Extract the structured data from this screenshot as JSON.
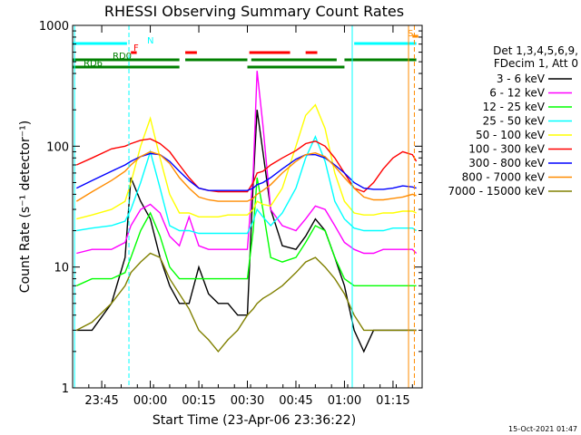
{
  "chart_data": {
    "type": "line",
    "title": "RHESSI Observing Summary Count Rates",
    "xlabel": "Start Time (23-Apr-06 23:36:22)",
    "ylabel": "Count Rate (s⁻¹ detector⁻¹)",
    "yscale": "log",
    "ylim": [
      1,
      1000
    ],
    "xlim": [
      23.6,
      25.4
    ],
    "x_ticks": [
      23.75,
      24.0,
      24.25,
      24.5,
      24.75,
      25.0,
      25.25
    ],
    "x_tick_labels": [
      "23:45",
      "00:00",
      "00:15",
      "00:30",
      "00:45",
      "01:00",
      "01:15"
    ],
    "y_ticks": [
      1,
      10,
      100,
      1000
    ],
    "y_tick_labels": [
      "1",
      "10",
      "100",
      "1000"
    ],
    "legend": {
      "header": [
        "Det 1,3,4,5,6,9,",
        "FDecim 1, Att 0"
      ],
      "position": "right"
    },
    "timestamp": "15-Oct-2021 01:47",
    "flags": [
      {
        "label": "N",
        "color": "#00ffff",
        "segments": [
          [
            23.6,
            23.88
          ],
          [
            25.05,
            25.37
          ]
        ],
        "row": 1
      },
      {
        "label": "F",
        "color": "#ff0000",
        "segments": [
          [
            23.9,
            23.93
          ],
          [
            24.18,
            24.24
          ],
          [
            24.51,
            24.72
          ],
          [
            24.8,
            24.86
          ]
        ],
        "row": 2
      },
      {
        "label": "S",
        "color": "#ff8c00",
        "segments": [
          [
            25.35,
            25.38
          ]
        ],
        "row": 0
      },
      {
        "label": "RD0",
        "color": "#008000",
        "segments": [
          [
            23.6,
            24.15
          ],
          [
            24.18,
            24.5
          ],
          [
            24.52,
            24.96
          ],
          [
            25.0,
            25.37
          ]
        ],
        "row": 3
      },
      {
        "label": "RD6",
        "color": "#008000",
        "segments": [
          [
            23.6,
            24.15
          ],
          [
            24.5,
            25.0
          ]
        ],
        "row": 4
      }
    ],
    "vlines": [
      {
        "x": 23.61,
        "color": "#00ffff",
        "style": "solid"
      },
      {
        "x": 23.89,
        "color": "#00ffff",
        "style": "dashed"
      },
      {
        "x": 25.04,
        "color": "#00ffff",
        "style": "solid"
      },
      {
        "x": 25.33,
        "color": "#ff8c00",
        "style": "solid"
      },
      {
        "x": 25.36,
        "color": "#ff8c00",
        "style": "dashed"
      }
    ],
    "series": [
      {
        "name": "3 - 6 keV",
        "color": "#000000",
        "x": [
          23.62,
          23.7,
          23.8,
          23.87,
          23.9,
          23.95,
          24.0,
          24.05,
          24.1,
          24.15,
          24.2,
          24.25,
          24.3,
          24.35,
          24.4,
          24.45,
          24.5,
          24.53,
          24.55,
          24.58,
          24.62,
          24.68,
          24.75,
          24.8,
          24.85,
          24.9,
          24.95,
          25.0,
          25.05,
          25.1,
          25.15,
          25.2,
          25.25,
          25.3,
          25.35,
          25.37
        ],
        "y": [
          3,
          3,
          5,
          12,
          55,
          35,
          25,
          12,
          7,
          5,
          5,
          10,
          6,
          5,
          5,
          4,
          4,
          50,
          200,
          90,
          30,
          15,
          14,
          18,
          25,
          20,
          12,
          7,
          3,
          2,
          3,
          3,
          3,
          3,
          3,
          3
        ]
      },
      {
        "name": "6 - 12 keV",
        "color": "#ff00ff",
        "x": [
          23.62,
          23.7,
          23.8,
          23.87,
          23.9,
          23.95,
          24.0,
          24.05,
          24.1,
          24.15,
          24.2,
          24.25,
          24.3,
          24.35,
          24.4,
          24.45,
          24.5,
          24.53,
          24.55,
          24.58,
          24.62,
          24.68,
          24.75,
          24.8,
          24.85,
          24.9,
          24.95,
          25.0,
          25.05,
          25.1,
          25.15,
          25.2,
          25.25,
          25.3,
          25.35,
          25.37
        ],
        "y": [
          13,
          14,
          14,
          16,
          22,
          30,
          33,
          28,
          18,
          15,
          26,
          15,
          14,
          14,
          14,
          14,
          14,
          60,
          420,
          150,
          30,
          22,
          20,
          25,
          32,
          30,
          22,
          16,
          14,
          13,
          13,
          14,
          14,
          14,
          14,
          13
        ]
      },
      {
        "name": "12 - 25 keV",
        "color": "#00ff00",
        "x": [
          23.62,
          23.7,
          23.8,
          23.87,
          23.9,
          23.95,
          24.0,
          24.05,
          24.1,
          24.15,
          24.2,
          24.25,
          24.3,
          24.35,
          24.4,
          24.45,
          24.5,
          24.53,
          24.55,
          24.58,
          24.62,
          24.68,
          24.75,
          24.8,
          24.85,
          24.9,
          24.95,
          25.0,
          25.05,
          25.1,
          25.15,
          25.2,
          25.25,
          25.3,
          25.35,
          25.37
        ],
        "y": [
          7,
          8,
          8,
          9,
          12,
          20,
          28,
          18,
          10,
          8,
          8,
          8,
          8,
          8,
          8,
          8,
          8,
          20,
          55,
          30,
          12,
          11,
          12,
          16,
          22,
          20,
          12,
          8,
          7,
          7,
          7,
          7,
          7,
          7,
          7,
          7
        ]
      },
      {
        "name": "25 - 50 keV",
        "color": "#00ffff",
        "x": [
          23.62,
          23.7,
          23.8,
          23.87,
          23.9,
          23.95,
          24.0,
          24.05,
          24.1,
          24.15,
          24.2,
          24.25,
          24.3,
          24.35,
          24.4,
          24.45,
          24.5,
          24.53,
          24.55,
          24.58,
          24.62,
          24.68,
          24.75,
          24.8,
          24.85,
          24.9,
          24.95,
          25.0,
          25.05,
          25.1,
          25.15,
          25.2,
          25.25,
          25.3,
          25.35,
          25.37
        ],
        "y": [
          20,
          21,
          22,
          24,
          30,
          50,
          90,
          45,
          22,
          20,
          20,
          19,
          19,
          19,
          19,
          19,
          19,
          24,
          30,
          26,
          22,
          28,
          45,
          80,
          120,
          75,
          35,
          25,
          21,
          20,
          20,
          20,
          21,
          21,
          21,
          20
        ]
      },
      {
        "name": "50 - 100 keV",
        "color": "#ffff00",
        "x": [
          23.62,
          23.7,
          23.8,
          23.87,
          23.9,
          23.95,
          24.0,
          24.05,
          24.1,
          24.15,
          24.2,
          24.25,
          24.3,
          24.35,
          24.4,
          24.45,
          24.5,
          24.53,
          24.55,
          24.58,
          24.62,
          24.68,
          24.75,
          24.8,
          24.85,
          24.9,
          24.95,
          25.0,
          25.05,
          25.1,
          25.15,
          25.2,
          25.25,
          25.3,
          25.35,
          25.37
        ],
        "y": [
          25,
          27,
          30,
          35,
          50,
          100,
          170,
          80,
          40,
          28,
          28,
          26,
          26,
          26,
          27,
          27,
          27,
          30,
          35,
          33,
          32,
          45,
          100,
          180,
          220,
          140,
          60,
          35,
          28,
          27,
          27,
          28,
          28,
          29,
          29,
          28
        ]
      },
      {
        "name": "100 - 300 keV",
        "color": "#ff0000",
        "x": [
          23.62,
          23.7,
          23.8,
          23.87,
          23.9,
          23.95,
          24.0,
          24.05,
          24.1,
          24.15,
          24.2,
          24.25,
          24.3,
          24.35,
          24.4,
          24.45,
          24.5,
          24.53,
          24.55,
          24.58,
          24.62,
          24.68,
          24.75,
          24.8,
          24.85,
          24.9,
          24.95,
          25.0,
          25.05,
          25.1,
          25.15,
          25.2,
          25.25,
          25.3,
          25.35,
          25.37
        ],
        "y": [
          70,
          80,
          95,
          100,
          105,
          112,
          115,
          105,
          90,
          70,
          55,
          45,
          43,
          42,
          42,
          42,
          42,
          50,
          60,
          62,
          70,
          80,
          92,
          105,
          110,
          100,
          80,
          60,
          45,
          42,
          50,
          65,
          80,
          90,
          85,
          75
        ]
      },
      {
        "name": "300 - 800 keV",
        "color": "#0000ff",
        "x": [
          23.62,
          23.7,
          23.8,
          23.87,
          23.9,
          23.95,
          24.0,
          24.05,
          24.1,
          24.15,
          24.2,
          24.25,
          24.3,
          24.35,
          24.4,
          24.45,
          24.5,
          24.53,
          24.55,
          24.58,
          24.62,
          24.68,
          24.75,
          24.8,
          24.85,
          24.9,
          24.95,
          25.0,
          25.05,
          25.1,
          25.15,
          25.2,
          25.25,
          25.3,
          25.35,
          25.37
        ],
        "y": [
          45,
          52,
          62,
          70,
          75,
          82,
          87,
          85,
          75,
          62,
          52,
          45,
          43,
          43,
          43,
          43,
          43,
          45,
          48,
          50,
          55,
          65,
          78,
          85,
          85,
          80,
          70,
          60,
          50,
          45,
          44,
          44,
          45,
          47,
          46,
          45
        ]
      },
      {
        "name": "800 - 7000 keV",
        "color": "#ff8c00",
        "x": [
          23.62,
          23.7,
          23.8,
          23.87,
          23.9,
          23.95,
          24.0,
          24.05,
          24.1,
          24.15,
          24.2,
          24.25,
          24.3,
          24.35,
          24.4,
          24.45,
          24.5,
          24.53,
          24.55,
          24.58,
          24.62,
          24.68,
          24.75,
          24.8,
          24.85,
          24.9,
          24.95,
          25.0,
          25.05,
          25.1,
          25.15,
          25.2,
          25.25,
          25.3,
          25.35,
          25.37
        ],
        "y": [
          35,
          42,
          52,
          62,
          70,
          82,
          90,
          85,
          72,
          55,
          45,
          38,
          36,
          35,
          35,
          35,
          35,
          37,
          40,
          43,
          48,
          60,
          75,
          85,
          88,
          82,
          68,
          55,
          45,
          38,
          36,
          36,
          37,
          38,
          40,
          39
        ]
      },
      {
        "name": "7000 - 15000 keV",
        "color": "#808000",
        "x": [
          23.62,
          23.7,
          23.8,
          23.87,
          23.9,
          23.95,
          24.0,
          24.05,
          24.1,
          24.15,
          24.2,
          24.25,
          24.3,
          24.35,
          24.4,
          24.45,
          24.5,
          24.53,
          24.55,
          24.58,
          24.62,
          24.68,
          24.75,
          24.8,
          24.85,
          24.9,
          24.95,
          25.0,
          25.05,
          25.1,
          25.15,
          25.2,
          25.25,
          25.3,
          25.35,
          25.37
        ],
        "y": [
          3,
          3.5,
          5,
          7,
          9,
          11,
          13,
          12,
          8,
          6,
          4.5,
          3,
          2.5,
          2,
          2.5,
          3,
          4,
          4.5,
          5,
          5.5,
          6,
          7,
          9,
          11,
          12,
          10,
          8,
          6,
          4,
          3,
          3,
          3,
          3,
          3,
          3,
          3
        ]
      }
    ]
  }
}
